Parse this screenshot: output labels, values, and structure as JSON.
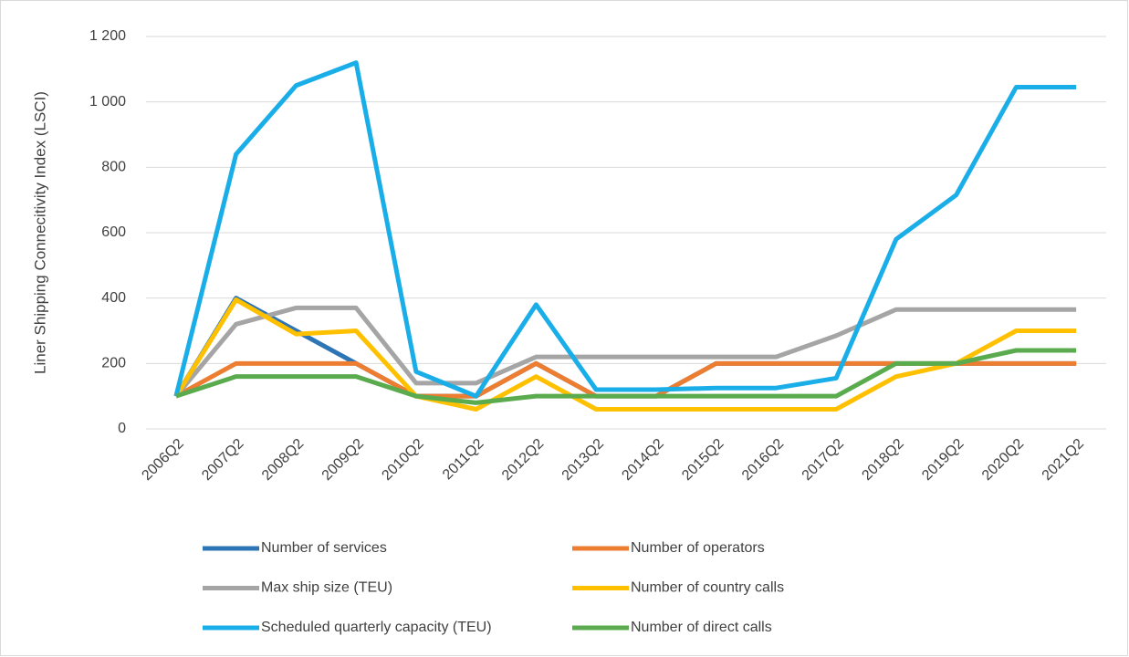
{
  "chart_data": {
    "type": "line",
    "y_label": "Liner Shipping Connecitivity Index (LSCI)",
    "categories": [
      "2006Q2",
      "2007Q2",
      "2008Q2",
      "2009Q2",
      "2010Q2",
      "2011Q2",
      "2012Q2",
      "2013Q2",
      "2014Q2",
      "2015Q2",
      "2016Q2",
      "2017Q2",
      "2018Q2",
      "2019Q2",
      "2020Q2",
      "2021Q2"
    ],
    "ylim": [
      0,
      1200
    ],
    "yticks": [
      0,
      200,
      400,
      600,
      800,
      {
        "value": 1000,
        "label": "1 000"
      },
      {
        "value": 1200,
        "label": "1 200"
      }
    ],
    "grid": true,
    "series": [
      {
        "name": "Number of services",
        "color": "#2e75b6",
        "values": [
          100,
          400,
          300,
          200,
          100,
          100,
          200,
          100,
          100,
          200,
          200,
          200,
          200,
          200,
          200,
          200
        ]
      },
      {
        "name": "Number of operators",
        "color": "#ed7d31",
        "values": [
          100,
          200,
          200,
          200,
          100,
          100,
          200,
          100,
          100,
          200,
          200,
          200,
          200,
          200,
          200,
          200
        ]
      },
      {
        "name": "Max ship size (TEU)",
        "color": "#a5a5a5",
        "values": [
          100,
          320,
          370,
          370,
          140,
          140,
          220,
          220,
          220,
          220,
          220,
          285,
          365,
          365,
          365,
          365
        ]
      },
      {
        "name": "Number of country calls",
        "color": "#ffc000",
        "values": [
          100,
          395,
          290,
          300,
          100,
          60,
          160,
          60,
          60,
          60,
          60,
          60,
          160,
          200,
          300,
          300
        ]
      },
      {
        "name": "Scheduled quarterly capacity (TEU)",
        "color": "#1aaee8",
        "values": [
          100,
          840,
          1050,
          1120,
          175,
          100,
          380,
          120,
          120,
          125,
          125,
          155,
          580,
          715,
          1045,
          1045
        ]
      },
      {
        "name": "Number of direct calls",
        "color": "#5aab4e",
        "values": [
          100,
          160,
          160,
          160,
          100,
          80,
          100,
          100,
          100,
          100,
          100,
          100,
          200,
          200,
          240,
          240
        ]
      }
    ]
  }
}
